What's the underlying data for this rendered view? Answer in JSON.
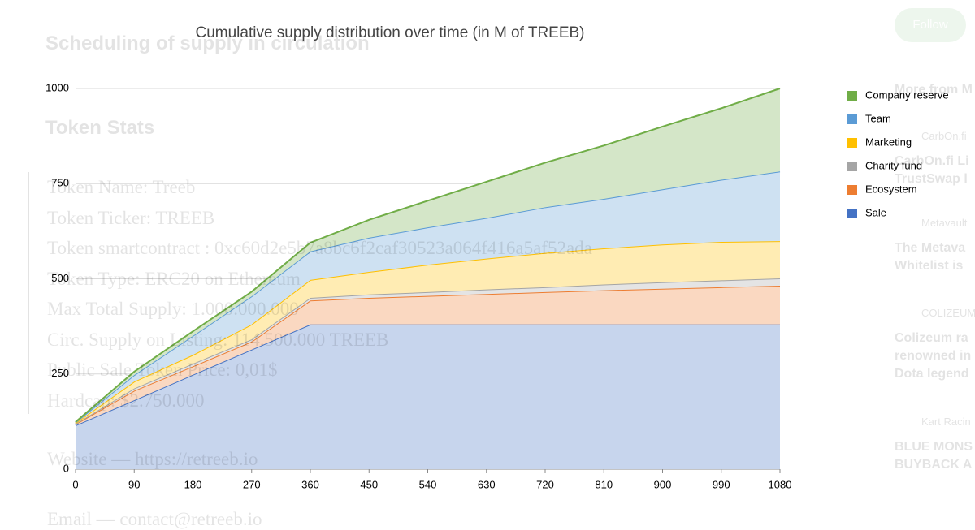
{
  "chart_data": {
    "type": "stacked_area",
    "title": "Cumulative supply distribution over time (in M of TREEB)",
    "x": [
      0,
      90,
      180,
      270,
      360,
      450,
      540,
      630,
      720,
      810,
      900,
      990,
      1080
    ],
    "xlim": [
      0,
      1080
    ],
    "xticks": [
      0,
      90,
      180,
      270,
      360,
      450,
      540,
      630,
      720,
      810,
      900,
      990,
      1080
    ],
    "ylim": [
      0,
      1000
    ],
    "yticks": [
      0,
      250,
      500,
      750,
      1000
    ],
    "grid": true,
    "legend": "right",
    "series": [
      {
        "name": "Sale",
        "color": "#4472c4",
        "values": [
          115,
          181,
          248,
          314,
          380,
          380,
          380,
          380,
          380,
          380,
          380,
          380,
          380
        ]
      },
      {
        "name": "Ecosystem",
        "color": "#ed7d31",
        "values": [
          3,
          25,
          22,
          21,
          63,
          70,
          75,
          80,
          85,
          90,
          94,
          98,
          102
        ]
      },
      {
        "name": "Charity fund",
        "color": "#a5a5a5",
        "values": [
          1,
          6,
          7,
          6,
          7,
          9,
          10,
          12,
          13,
          15,
          17,
          18,
          19
        ]
      },
      {
        "name": "Marketing",
        "color": "#ffc000",
        "values": [
          2,
          18,
          23,
          39,
          47,
          59,
          72,
          81,
          90,
          95,
          99,
          101,
          98
        ]
      },
      {
        "name": "Team",
        "color": "#5b9bd5",
        "values": [
          2,
          17,
          50,
          74,
          75,
          90,
          98,
          107,
          120,
          130,
          145,
          163,
          183
        ]
      },
      {
        "name": "Company reserve",
        "color": "#70ad47",
        "values": [
          1,
          9,
          12,
          12,
          23,
          47,
          70,
          95,
          117,
          140,
          165,
          188,
          218
        ]
      }
    ]
  },
  "page": {
    "heading": "Scheduling of supply in circulation",
    "section": "Token Stats",
    "lines": [
      "Token Name: Treeb",
      "Token Ticker: TREEB",
      "Token smartcontract : 0xc60d2e5b7a8bc6f2caf30523a064f416a5af52ada",
      "Token Type: ERC20 on Ethereum",
      "Max Total Supply: 1.000.000.000",
      "Circ. Supply on Listing: 114.500.000 TREEB",
      "Public Sale Token Price: 0,01$",
      "Hardcap: $2.750.000"
    ],
    "website": "Website — https://retreeb.io",
    "email": "Email — contact@retreeb.io",
    "follow": "Follow",
    "sidebar_title": "More from M",
    "sidebar": [
      {
        "source": "CarbOn.fi",
        "headline": [
          "CarbOn.fi Li",
          "TrustSwap l"
        ]
      },
      {
        "source": "Metavault",
        "headline": [
          "The Metava",
          "Whitelist is"
        ]
      },
      {
        "source": "COLIZEUM",
        "headline": [
          "Colizeum ra",
          "renowned in",
          "Dota legend"
        ]
      },
      {
        "source": "Kart Racin",
        "headline": [
          "BLUE MONS",
          "BUYBACK A"
        ]
      }
    ]
  }
}
